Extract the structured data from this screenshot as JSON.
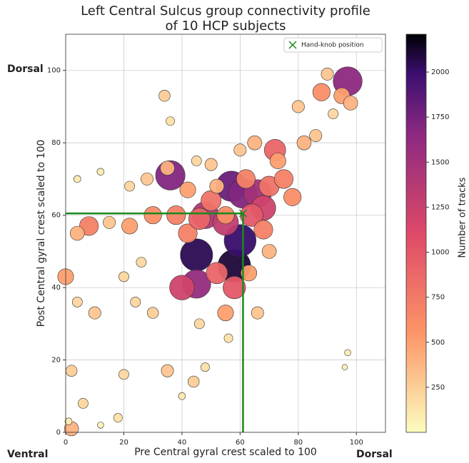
{
  "chart_data": {
    "type": "bubble",
    "title": [
      "Left Central Sulcus group connectivity profile",
      "of 10 HCP subjects"
    ],
    "x_label": "Pre Central gyral crest  scaled to 100",
    "y_label": "Post Central gyral crest  scaled to 100",
    "colorbar_label": "Number of tracks",
    "annotations": {
      "top_left": "Dorsal",
      "bottom_left": "Ventral",
      "bottom_right": "Dorsal"
    },
    "xlim": [
      0,
      110
    ],
    "ylim": [
      0,
      110
    ],
    "xticks": [
      0,
      20,
      40,
      60,
      80,
      100
    ],
    "yticks": [
      0,
      20,
      40,
      60,
      80,
      100
    ],
    "clim": [
      0,
      2210
    ],
    "cticks": [
      250,
      500,
      750,
      1000,
      1250,
      1500,
      1750,
      2000
    ],
    "grid": true,
    "colormap": "magma_r",
    "hand_knob": {
      "name": "Hand-knob position",
      "x": 61,
      "y": 60.5,
      "color": "#1a8a1a"
    },
    "legend": "upper right",
    "x": [
      36,
      45,
      45,
      58,
      60,
      57,
      61,
      66,
      97,
      48,
      40,
      55,
      68,
      72,
      64,
      58,
      52,
      42,
      50,
      62,
      70,
      75,
      78,
      88,
      95,
      98,
      90,
      80,
      73,
      82,
      86,
      30,
      22,
      8,
      4,
      15,
      0,
      2,
      10,
      4,
      24,
      30,
      35,
      20,
      6,
      18,
      44,
      48,
      66,
      55,
      42,
      38,
      26,
      20,
      35,
      28,
      22,
      12,
      4,
      34,
      36,
      52,
      60,
      65,
      68,
      70,
      63,
      46,
      56,
      97,
      96,
      2,
      1,
      12,
      40,
      50,
      45,
      92,
      55,
      46
    ],
    "y": [
      71,
      49,
      41,
      46,
      53,
      68,
      66,
      66,
      97,
      60,
      40,
      58,
      62,
      78,
      60,
      40,
      44,
      55,
      64,
      70,
      68,
      70,
      65,
      94,
      93,
      91,
      99,
      90,
      75,
      80,
      82,
      60,
      57,
      57,
      55,
      58,
      43,
      1,
      33,
      36,
      36,
      33,
      17,
      16,
      8,
      4,
      14,
      18,
      33,
      33,
      67,
      60,
      47,
      43,
      73,
      70,
      68,
      72,
      70,
      93,
      86,
      68,
      78,
      80,
      56,
      50,
      44,
      30,
      26,
      22,
      18,
      17,
      3,
      2,
      10,
      74,
      75,
      88,
      60,
      59
    ],
    "sizes": [
      1700,
      2050,
      1600,
      2100,
      2000,
      1800,
      1700,
      1500,
      1650,
      1400,
      1200,
      1300,
      1200,
      900,
      1000,
      1000,
      900,
      700,
      800,
      700,
      800,
      700,
      600,
      600,
      500,
      400,
      300,
      300,
      500,
      400,
      300,
      600,
      500,
      700,
      400,
      300,
      500,
      400,
      300,
      200,
      200,
      250,
      300,
      200,
      200,
      150,
      250,
      150,
      300,
      500,
      500,
      700,
      200,
      200,
      400,
      300,
      200,
      100,
      100,
      250,
      150,
      400,
      300,
      400,
      700,
      400,
      500,
      200,
      150,
      80,
      60,
      250,
      100,
      80,
      100,
      300,
      200,
      200,
      600,
      900
    ]
  }
}
